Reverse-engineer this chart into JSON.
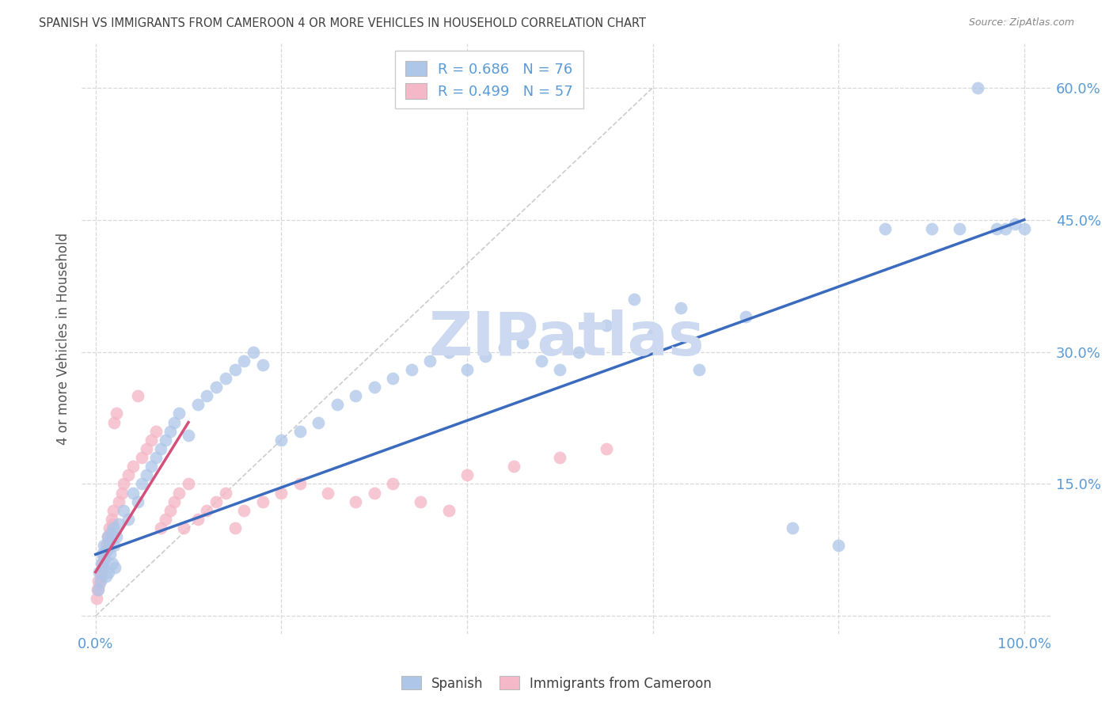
{
  "title": "SPANISH VS IMMIGRANTS FROM CAMEROON 4 OR MORE VEHICLES IN HOUSEHOLD CORRELATION CHART",
  "source": "Source: ZipAtlas.com",
  "xlabel_tick_vals": [
    0.0,
    20.0,
    40.0,
    60.0,
    80.0,
    100.0
  ],
  "ylabel_tick_vals": [
    0.0,
    15.0,
    30.0,
    45.0,
    60.0
  ],
  "ylabel": "4 or more Vehicles in Household",
  "xlim": [
    -1.5,
    103
  ],
  "ylim": [
    -2,
    65
  ],
  "watermark": "ZIPatlas",
  "legend": [
    {
      "label": "R = 0.686   N = 76",
      "color": "#aec6e8"
    },
    {
      "label": "R = 0.499   N = 57",
      "color": "#f4b8c8"
    }
  ],
  "legend_bottom": [
    {
      "label": "Spanish",
      "color": "#aec6e8"
    },
    {
      "label": "Immigrants from Cameroon",
      "color": "#f4b8c8"
    }
  ],
  "spanish_x": [
    0.3,
    0.4,
    0.5,
    0.6,
    0.7,
    0.8,
    0.9,
    1.0,
    1.1,
    1.2,
    1.3,
    1.4,
    1.5,
    1.6,
    1.7,
    1.8,
    1.9,
    2.0,
    2.1,
    2.2,
    2.5,
    3.0,
    3.5,
    4.0,
    4.5,
    5.0,
    5.5,
    6.0,
    6.5,
    7.0,
    7.5,
    8.0,
    8.5,
    9.0,
    10.0,
    11.0,
    12.0,
    13.0,
    14.0,
    15.0,
    16.0,
    17.0,
    18.0,
    20.0,
    22.0,
    24.0,
    26.0,
    28.0,
    30.0,
    32.0,
    34.0,
    36.0,
    38.0,
    40.0,
    42.0,
    44.0,
    46.0,
    48.0,
    50.0,
    52.0,
    55.0,
    58.0,
    60.0,
    63.0,
    65.0,
    70.0,
    75.0,
    80.0,
    85.0,
    90.0,
    93.0,
    95.0,
    97.0,
    98.0,
    99.0,
    100.0
  ],
  "spanish_y": [
    3.0,
    5.0,
    4.0,
    6.0,
    7.0,
    5.5,
    8.0,
    6.5,
    4.5,
    7.5,
    9.0,
    5.0,
    8.5,
    7.0,
    9.5,
    6.0,
    10.0,
    8.0,
    5.5,
    9.0,
    10.5,
    12.0,
    11.0,
    14.0,
    13.0,
    15.0,
    16.0,
    17.0,
    18.0,
    19.0,
    20.0,
    21.0,
    22.0,
    23.0,
    20.5,
    24.0,
    25.0,
    26.0,
    27.0,
    28.0,
    29.0,
    30.0,
    28.5,
    20.0,
    21.0,
    22.0,
    24.0,
    25.0,
    26.0,
    27.0,
    28.0,
    29.0,
    30.0,
    28.0,
    29.5,
    30.5,
    31.0,
    29.0,
    28.0,
    30.0,
    33.0,
    36.0,
    32.0,
    35.0,
    28.0,
    34.0,
    10.0,
    8.0,
    44.0,
    44.0,
    44.0,
    60.0,
    44.0,
    44.0,
    44.5,
    44.0
  ],
  "cameroon_x": [
    0.1,
    0.2,
    0.3,
    0.4,
    0.5,
    0.6,
    0.7,
    0.8,
    0.9,
    1.0,
    1.1,
    1.2,
    1.3,
    1.4,
    1.5,
    1.6,
    1.7,
    1.8,
    1.9,
    2.0,
    2.2,
    2.5,
    2.8,
    3.0,
    3.5,
    4.0,
    4.5,
    5.0,
    5.5,
    6.0,
    6.5,
    7.0,
    7.5,
    8.0,
    8.5,
    9.0,
    9.5,
    10.0,
    11.0,
    12.0,
    13.0,
    14.0,
    15.0,
    16.0,
    18.0,
    20.0,
    22.0,
    25.0,
    28.0,
    30.0,
    32.0,
    35.0,
    38.0,
    40.0,
    45.0,
    50.0,
    55.0
  ],
  "cameroon_y": [
    2.0,
    3.0,
    4.0,
    3.5,
    5.0,
    4.5,
    6.0,
    5.5,
    7.0,
    6.5,
    8.0,
    7.5,
    9.0,
    8.5,
    10.0,
    9.5,
    11.0,
    10.5,
    12.0,
    22.0,
    23.0,
    13.0,
    14.0,
    15.0,
    16.0,
    17.0,
    25.0,
    18.0,
    19.0,
    20.0,
    21.0,
    10.0,
    11.0,
    12.0,
    13.0,
    14.0,
    10.0,
    15.0,
    11.0,
    12.0,
    13.0,
    14.0,
    10.0,
    12.0,
    13.0,
    14.0,
    15.0,
    14.0,
    13.0,
    14.0,
    15.0,
    13.0,
    12.0,
    16.0,
    17.0,
    18.0,
    19.0
  ],
  "blue_color": "#aec6e8",
  "pink_color": "#f4b8c8",
  "blue_line_color": "#3a6bbf",
  "pink_line_color": "#d4507a",
  "diagonal_color": "#cccccc",
  "grid_color": "#d8d8d8",
  "title_color": "#404040",
  "tick_color": "#5b9bd5",
  "watermark_color": "#ccd9f0",
  "background_color": "#ffffff",
  "blue_line_x0": 0.0,
  "blue_line_y0": 7.0,
  "blue_line_x1": 100.0,
  "blue_line_y1": 45.0,
  "pink_line_x0": 0.0,
  "pink_line_y0": 5.0,
  "pink_line_x1": 10.0,
  "pink_line_y1": 22.0
}
